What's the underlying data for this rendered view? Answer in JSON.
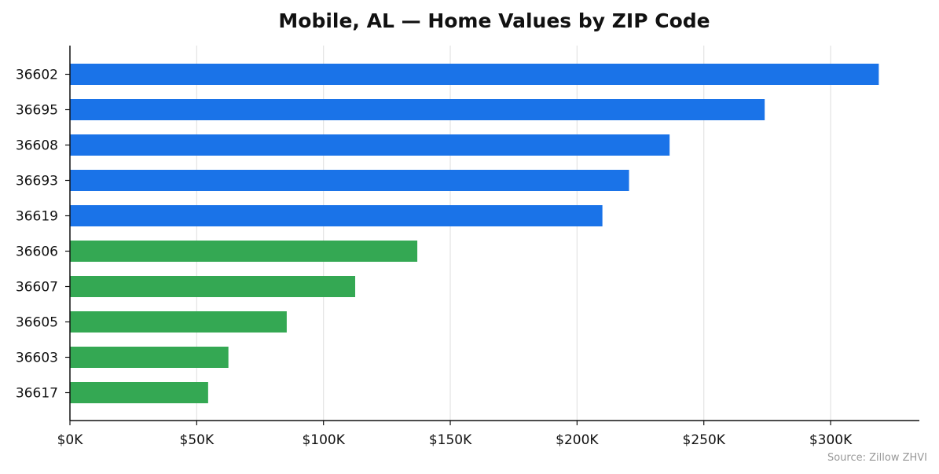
{
  "chart_data": {
    "type": "bar",
    "orientation": "horizontal",
    "title": "Mobile, AL — Home Values by ZIP Code",
    "xlabel": "",
    "ylabel": "",
    "xlim": [
      0,
      335000
    ],
    "x_ticks": [
      0,
      50000,
      100000,
      150000,
      200000,
      250000,
      300000
    ],
    "x_tick_labels": [
      "$0K",
      "$50K",
      "$100K",
      "$150K",
      "$200K",
      "$250K",
      "$300K"
    ],
    "grid": "vertical",
    "legend": "none",
    "categories": [
      "36602",
      "36695",
      "36608",
      "36693",
      "36619",
      "36606",
      "36607",
      "36605",
      "36603",
      "36617"
    ],
    "values": [
      319000,
      274000,
      236500,
      220500,
      210000,
      137000,
      112500,
      85500,
      62500,
      54500
    ],
    "bar_colors": [
      "#1a73e8",
      "#1a73e8",
      "#1a73e8",
      "#1a73e8",
      "#1a73e8",
      "#34a853",
      "#34a853",
      "#34a853",
      "#34a853",
      "#34a853"
    ],
    "source": "Source: Zillow ZHVI"
  }
}
